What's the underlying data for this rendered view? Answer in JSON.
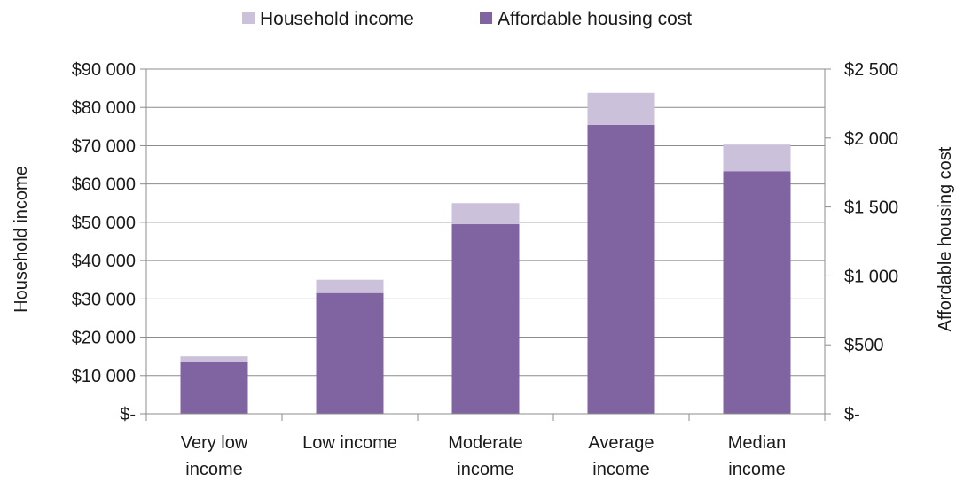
{
  "chart_data": {
    "type": "bar",
    "categories": [
      [
        "Very low",
        "income"
      ],
      [
        "Low income"
      ],
      [
        "Moderate",
        "income"
      ],
      [
        "Average",
        "income"
      ],
      [
        "Median",
        "income"
      ]
    ],
    "series": [
      {
        "name": "Household income",
        "axis": "left",
        "color": "#ccc1da",
        "values": [
          15000,
          35000,
          55000,
          83800,
          70300
        ]
      },
      {
        "name": "Affordable housing cost",
        "axis": "right",
        "color": "#8064a2",
        "values": [
          375,
          875,
          1375,
          2095,
          1758
        ]
      }
    ],
    "ylabel": "Household income",
    "ylabel_right": "Affordable housing cost",
    "ylim": [
      0,
      90000
    ],
    "ylim_right": [
      0,
      2500
    ],
    "yticks": [
      {
        "value": 0,
        "label": "$-"
      },
      {
        "value": 10000,
        "label": "$10 000"
      },
      {
        "value": 20000,
        "label": "$20 000"
      },
      {
        "value": 30000,
        "label": "$30 000"
      },
      {
        "value": 40000,
        "label": "$40 000"
      },
      {
        "value": 50000,
        "label": "$50 000"
      },
      {
        "value": 60000,
        "label": "$60 000"
      },
      {
        "value": 70000,
        "label": "$70 000"
      },
      {
        "value": 80000,
        "label": "$80 000"
      },
      {
        "value": 90000,
        "label": "$90 000"
      }
    ],
    "yticks_right": [
      {
        "value": 0,
        "label": "$-"
      },
      {
        "value": 500,
        "label": "$500"
      },
      {
        "value": 1000,
        "label": "$1 000"
      },
      {
        "value": 1500,
        "label": "$1 500"
      },
      {
        "value": 2000,
        "label": "$2 000"
      },
      {
        "value": 2500,
        "label": "$2 500"
      }
    ],
    "grid": true,
    "legend_position": "top"
  }
}
